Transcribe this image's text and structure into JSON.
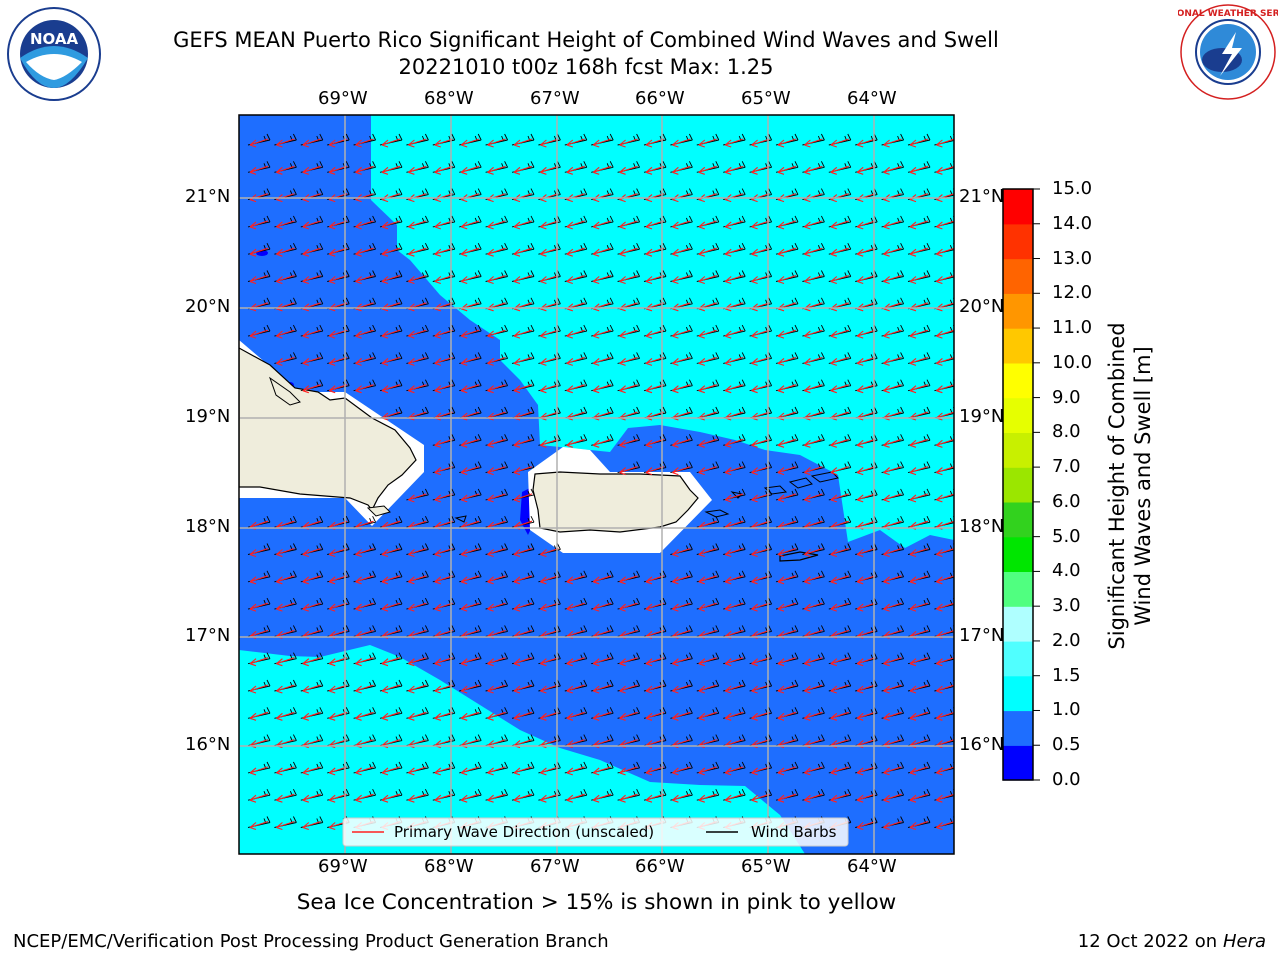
{
  "title": {
    "line1": "GEFS MEAN Puerto Rico Significant Height of Combined Wind Waves and Swell",
    "line2": "20221010 t00z 168h fcst   Max: 1.25"
  },
  "logos": {
    "noaa": {
      "text": "NOAA",
      "ring_text": "NATIONAL OCEANIC AND ATMOSPHERIC ADMINISTRATION · U.S. DEPARTMENT OF COMMERCE"
    },
    "nws": {
      "ring_text": "NATIONAL WEATHER SERVICE"
    }
  },
  "map": {
    "lon_ticks": [
      "69°W",
      "68°W",
      "67°W",
      "66°W",
      "65°W",
      "64°W"
    ],
    "lat_ticks": [
      "21°N",
      "20°N",
      "19°N",
      "18°N",
      "17°N",
      "16°N"
    ],
    "legend": {
      "wave_dir": "Primary Wave Direction (unscaled)",
      "wind_barbs": "Wind Barbs",
      "wave_color": "#ff2020",
      "barb_color": "#000000"
    },
    "colors": {
      "land": "#efeddc",
      "sea_05_10": "#1e6eff",
      "sea_10_15": "#00ffff",
      "sea_00_05": "#0000ff"
    }
  },
  "colorbar": {
    "label": "Significant Height of Combined Wind Waves and Swell [m]",
    "label_line1": "Significant Height of Combined",
    "label_line2": "Wind Waves and Swell [m]",
    "ticks": [
      "15.0",
      "14.0",
      "13.0",
      "12.0",
      "11.0",
      "10.0",
      "9.0",
      "8.0",
      "7.0",
      "6.0",
      "5.0",
      "4.0",
      "3.0",
      "2.0",
      "1.5",
      "1.0",
      "0.5",
      "0.0"
    ],
    "colors": [
      "#0000ff",
      "#1e6eff",
      "#00ffff",
      "#50ffff",
      "#afffff",
      "#50ff80",
      "#00e600",
      "#32d21e",
      "#9be600",
      "#c8f000",
      "#e6ff00",
      "#ffff00",
      "#ffc800",
      "#ff9600",
      "#ff6400",
      "#ff3200",
      "#ff0000"
    ]
  },
  "ice_note": "Sea Ice Concentration > 15% is shown in pink to yellow",
  "footer": {
    "left": "NCEP/EMC/Verification Post Processing Product Generation Branch",
    "right_prefix": "12 Oct 2022 on ",
    "right_host": "Hera"
  }
}
